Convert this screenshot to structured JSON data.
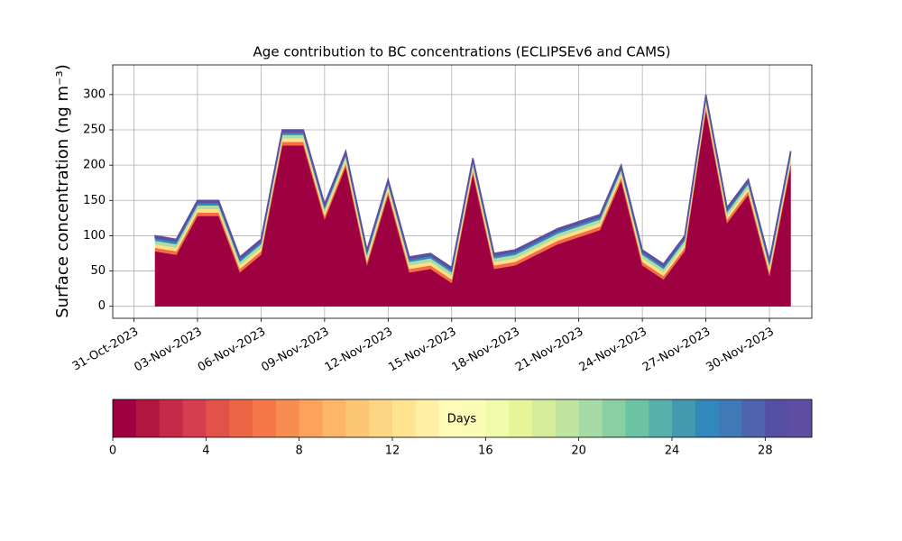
{
  "chart_data": {
    "type": "stacked-area",
    "title": "Age contribution to BC concentrations (ECLIPSEv6 and CAMS)",
    "ylabel": "Surface concentration (ng m⁻³)",
    "x": [
      "2023-11-01",
      "2023-11-02",
      "2023-11-03",
      "2023-11-04",
      "2023-11-05",
      "2023-11-06",
      "2023-11-07",
      "2023-11-08",
      "2023-11-09",
      "2023-11-10",
      "2023-11-11",
      "2023-11-12",
      "2023-11-13",
      "2023-11-14",
      "2023-11-15",
      "2023-11-16",
      "2023-11-17",
      "2023-11-18",
      "2023-11-19",
      "2023-11-20",
      "2023-11-21",
      "2023-11-22",
      "2023-11-23",
      "2023-11-24",
      "2023-11-25",
      "2023-11-26",
      "2023-11-27",
      "2023-11-28",
      "2023-11-29",
      "2023-11-30",
      "2023-12-01"
    ],
    "series": [
      {
        "color": "#9e0142",
        "values": [
          78,
          73,
          128,
          128,
          48,
          73,
          228,
          228,
          123,
          198,
          58,
          158,
          48,
          53,
          33,
          188,
          53,
          58,
          73,
          88,
          98,
          108,
          178,
          58,
          38,
          78,
          278,
          118,
          158,
          43,
          198
        ]
      },
      {
        "color": "#f46d43",
        "values": [
          5,
          5,
          5,
          5,
          5,
          5,
          5,
          5,
          5,
          5,
          5,
          5,
          5,
          5,
          5,
          5,
          5,
          5,
          5,
          5,
          5,
          5,
          5,
          5,
          5,
          5,
          5,
          5,
          5,
          5,
          5
        ]
      },
      {
        "color": "#fee08b",
        "values": [
          5,
          5,
          5,
          5,
          5,
          5,
          5,
          5,
          5,
          5,
          5,
          5,
          5,
          5,
          5,
          5,
          5,
          5,
          5,
          5,
          5,
          5,
          5,
          5,
          5,
          5,
          5,
          5,
          5,
          5,
          5
        ]
      },
      {
        "color": "#abdda4",
        "values": [
          5,
          5,
          5,
          5,
          5,
          5,
          5,
          5,
          5,
          5,
          5,
          5,
          5,
          5,
          5,
          5,
          5,
          5,
          5,
          5,
          5,
          5,
          5,
          5,
          5,
          5,
          5,
          5,
          5,
          5,
          5
        ]
      },
      {
        "color": "#3288bd",
        "values": [
          4,
          4,
          4,
          4,
          4,
          4,
          4,
          4,
          4,
          4,
          4,
          4,
          4,
          4,
          4,
          4,
          4,
          4,
          4,
          4,
          4,
          4,
          4,
          4,
          4,
          4,
          4,
          4,
          4,
          4,
          4
        ]
      },
      {
        "color": "#5e4fa2",
        "values": [
          3,
          3,
          3,
          3,
          3,
          3,
          3,
          3,
          3,
          3,
          3,
          3,
          3,
          3,
          3,
          3,
          3,
          3,
          3,
          3,
          3,
          3,
          3,
          3,
          3,
          3,
          3,
          3,
          3,
          3,
          3
        ]
      }
    ],
    "xlim": [
      "2023-10-30",
      "2023-12-02"
    ],
    "xticks": [
      {
        "value": "2023-10-31",
        "label": "31-Oct-2023"
      },
      {
        "value": "2023-11-03",
        "label": "03-Nov-2023"
      },
      {
        "value": "2023-11-06",
        "label": "06-Nov-2023"
      },
      {
        "value": "2023-11-09",
        "label": "09-Nov-2023"
      },
      {
        "value": "2023-11-12",
        "label": "12-Nov-2023"
      },
      {
        "value": "2023-11-15",
        "label": "15-Nov-2023"
      },
      {
        "value": "2023-11-18",
        "label": "18-Nov-2023"
      },
      {
        "value": "2023-11-21",
        "label": "21-Nov-2023"
      },
      {
        "value": "2023-11-24",
        "label": "24-Nov-2023"
      },
      {
        "value": "2023-11-27",
        "label": "27-Nov-2023"
      },
      {
        "value": "2023-11-30",
        "label": "30-Nov-2023"
      }
    ],
    "ylim": [
      -17,
      342
    ],
    "yticks": [
      0,
      50,
      100,
      150,
      200,
      250,
      300
    ],
    "grid": true,
    "colorbar": {
      "label": "Days",
      "lim": [
        0,
        30
      ],
      "ticks": [
        0,
        4,
        8,
        12,
        16,
        20,
        24,
        28
      ],
      "colors": [
        "#9e0142",
        "#b2183f",
        "#c52a48",
        "#d53e4f",
        "#e1524a",
        "#ec6645",
        "#f57748",
        "#f88d52",
        "#fba35c",
        "#fdb567",
        "#fdc675",
        "#fed683",
        "#fee391",
        "#fff0a6",
        "#fffbb8",
        "#fbfdb7",
        "#f2faac",
        "#e6f598",
        "#d4ed9b",
        "#bfe5a0",
        "#a5dba4",
        "#88cfa4",
        "#6cc4a5",
        "#57b0ac",
        "#439aae",
        "#3288bd",
        "#3f79b6",
        "#4e64ad",
        "#5650a5",
        "#5e4fa2"
      ]
    }
  }
}
